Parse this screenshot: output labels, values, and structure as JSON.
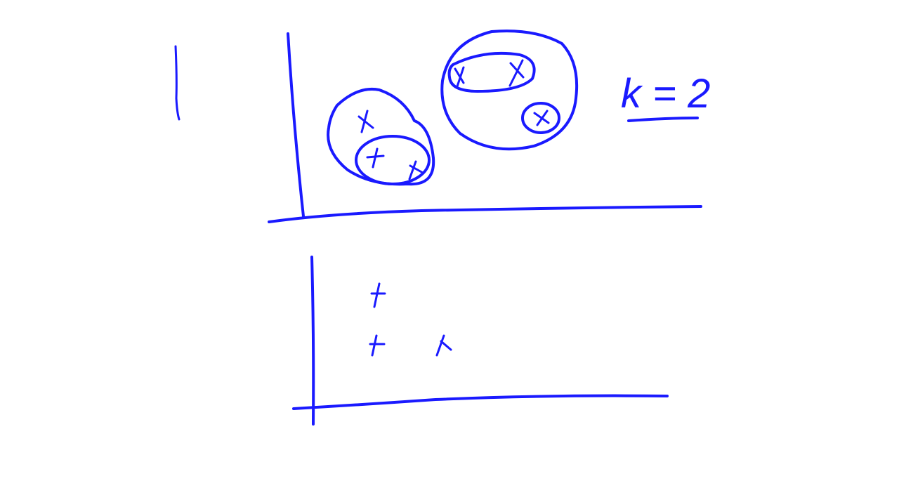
{
  "ink_color": "#1a1aff",
  "background_color": "#ffffff",
  "annotation": {
    "k_label": "k = 2"
  },
  "diagram": {
    "description_kind": "hierarchical clustering sketch",
    "top_plot": {
      "point_count": 6,
      "cluster_count": 2
    },
    "bottom_plot": {
      "point_count": 3
    }
  }
}
